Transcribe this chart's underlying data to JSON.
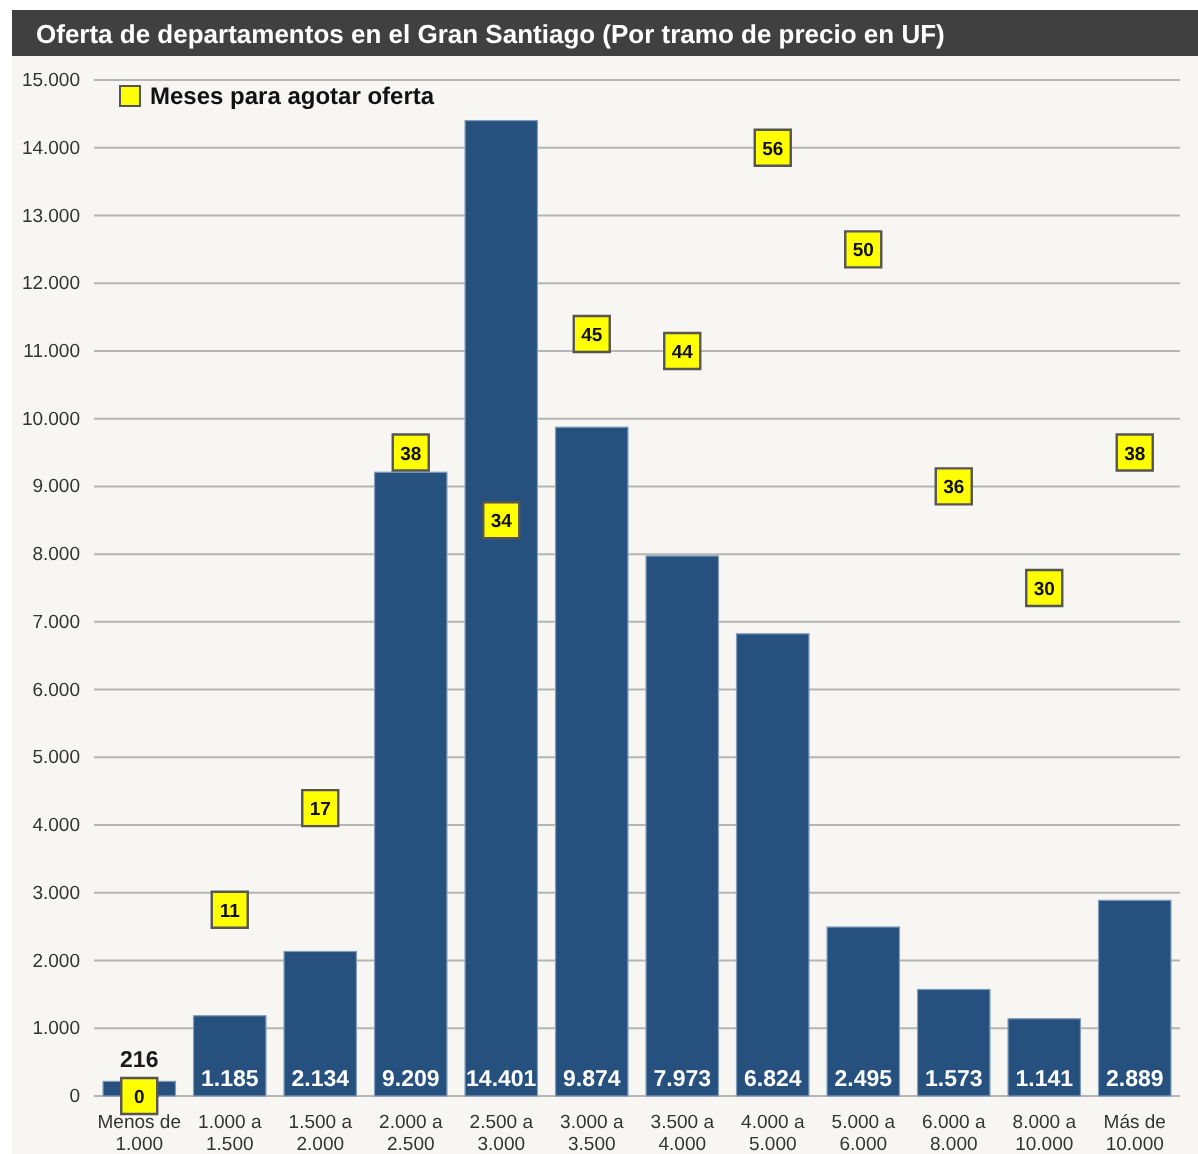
{
  "chart_data": {
    "type": "bar",
    "title": "Oferta de departamentos en el Gran Santiago (Por tramo de precio en UF)",
    "categories": [
      "Menos de 1.000",
      "1.000 a 1.500",
      "1.500 a 2.000",
      "2.000 a 2.500",
      "2.500 a 3.000",
      "3.000 a 3.500",
      "3.500 a 4.000",
      "4.000 a 5.000",
      "5.000 a 6.000",
      "6.000 a 8.000",
      "8.000 a 10.000",
      "Más de 10.000"
    ],
    "series": [
      {
        "color": "#26517f",
        "values": [
          216,
          1185,
          2134,
          9209,
          14401,
          9874,
          7973,
          6824,
          2495,
          1573,
          1141,
          2889
        ],
        "value_labels": [
          "216",
          "1.185",
          "2.134",
          "9.209",
          "14.401",
          "9.874",
          "7.973",
          "6.824",
          "2.495",
          "1.573",
          "1.141",
          "2.889"
        ]
      },
      {
        "type": "scatter",
        "name": "Meses para agotar oferta",
        "color": "#ffff00",
        "axis": "y2",
        "values": [
          0,
          11,
          17,
          38,
          34,
          45,
          44,
          56,
          50,
          36,
          30,
          38
        ],
        "value_labels": [
          "0",
          "11",
          "17",
          "38",
          "34",
          "45",
          "44",
          "56",
          "50",
          "36",
          "30",
          "38"
        ]
      }
    ],
    "ylim": [
      0,
      15000
    ],
    "yticks": [
      0,
      {
        "value": 1000,
        "label": "1.000"
      },
      {
        "value": 2000,
        "label": "2.000"
      },
      {
        "value": 3000,
        "label": "3.000"
      },
      {
        "value": 4000,
        "label": "4.000"
      },
      {
        "value": 5000,
        "label": "5.000"
      },
      {
        "value": 6000,
        "label": "6.000"
      },
      {
        "value": 7000,
        "label": "7.000"
      },
      {
        "value": 8000,
        "label": "8.000"
      },
      {
        "value": 9000,
        "label": "9.000"
      },
      {
        "value": 10000,
        "label": "10.000"
      },
      {
        "value": 11000,
        "label": "11.000"
      },
      {
        "value": 12000,
        "label": "12.000"
      },
      {
        "value": 13000,
        "label": "13.000"
      },
      {
        "value": 14000,
        "label": "14.000"
      },
      {
        "value": 15000,
        "label": "15.000"
      }
    ],
    "y2lim": [
      0,
      60
    ],
    "grid": "y",
    "legend": "top left",
    "marker": "square"
  }
}
